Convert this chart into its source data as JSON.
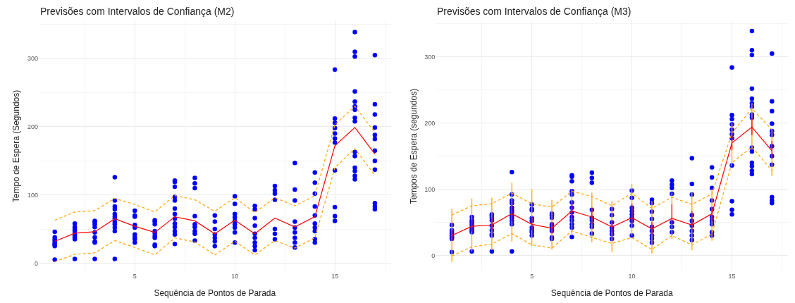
{
  "chart_data": [
    {
      "type": "scatter",
      "title": "Previsões com Intervalos de Confiança (M2)",
      "xlabel": "Sequência de Pontos de Parada",
      "ylabel": "Tempo de Espera (Segundos)",
      "xlim": [
        0.2,
        17.8
      ],
      "xticks": [
        5,
        10,
        15
      ],
      "ylim": [
        -12,
        355
      ],
      "yticks": [
        0,
        100,
        200,
        300
      ],
      "grid": true,
      "series": [
        {
          "color": "#0000ff",
          "marker": "circle",
          "x": [
            1,
            1,
            1,
            1,
            1,
            1,
            1,
            1,
            1,
            2,
            2,
            2,
            2,
            2,
            2,
            2,
            2,
            2,
            3,
            3,
            3,
            3,
            3,
            3,
            3,
            3,
            3,
            4,
            4,
            4,
            4,
            4,
            4,
            4,
            4,
            4,
            4,
            4,
            4,
            5,
            5,
            5,
            5,
            5,
            5,
            5,
            5,
            5,
            6,
            6,
            6,
            6,
            6,
            6,
            6,
            6,
            6,
            7,
            7,
            7,
            7,
            7,
            7,
            7,
            7,
            7,
            7,
            7,
            7,
            7,
            8,
            8,
            8,
            8,
            8,
            8,
            8,
            8,
            8,
            9,
            9,
            9,
            9,
            9,
            9,
            9,
            10,
            10,
            10,
            10,
            10,
            10,
            10,
            10,
            10,
            11,
            11,
            11,
            11,
            11,
            11,
            11,
            11,
            11,
            12,
            12,
            12,
            12,
            12,
            12,
            12,
            13,
            13,
            13,
            13,
            13,
            13,
            13,
            13,
            13,
            14,
            14,
            14,
            14,
            14,
            14,
            14,
            14,
            14,
            14,
            15,
            15,
            15,
            15,
            15,
            15,
            15,
            15,
            15,
            15,
            15,
            16,
            16,
            16,
            16,
            16,
            16,
            16,
            16,
            16,
            16,
            16,
            16,
            16,
            16,
            16,
            17,
            17,
            17,
            17,
            17,
            17,
            17,
            17,
            17,
            17,
            17,
            17
          ],
          "values": [
            46,
            38,
            35,
            33,
            30,
            28,
            27,
            25,
            5,
            58,
            53,
            50,
            47,
            43,
            40,
            37,
            35,
            6,
            62,
            60,
            57,
            53,
            45,
            38,
            32,
            30,
            6,
            126,
            92,
            83,
            79,
            72,
            68,
            65,
            60,
            57,
            52,
            47,
            6,
            77,
            70,
            68,
            56,
            52,
            42,
            38,
            35,
            30,
            63,
            61,
            57,
            47,
            44,
            40,
            37,
            27,
            25,
            121,
            119,
            112,
            97,
            92,
            80,
            72,
            65,
            58,
            53,
            47,
            42,
            28,
            125,
            117,
            110,
            69,
            57,
            53,
            47,
            43,
            33,
            70,
            61,
            50,
            42,
            37,
            32,
            25,
            98,
            87,
            72,
            67,
            62,
            57,
            52,
            45,
            30,
            84,
            79,
            66,
            55,
            43,
            37,
            30,
            25,
            19,
            113,
            107,
            102,
            93,
            50,
            43,
            35,
            147,
            108,
            92,
            61,
            52,
            45,
            37,
            30,
            23,
            133,
            118,
            102,
            83,
            70,
            58,
            52,
            47,
            35,
            30,
            284,
            212,
            206,
            198,
            190,
            183,
            177,
            136,
            82,
            69,
            62,
            339,
            310,
            303,
            252,
            237,
            230,
            225,
            213,
            208,
            163,
            157,
            140,
            135,
            128,
            123,
            305,
            233,
            218,
            199,
            188,
            182,
            165,
            150,
            137,
            88,
            83,
            79
          ]
        },
        {
          "type": "line",
          "color": "#ff0000",
          "line_style": "solid",
          "marker": "none",
          "x": [
            1,
            2,
            3,
            4,
            5,
            6,
            7,
            8,
            9,
            10,
            11,
            12,
            13,
            14,
            15,
            16,
            17
          ],
          "values": [
            32,
            44,
            46,
            65,
            54,
            45,
            68,
            62,
            43,
            63,
            43,
            66,
            53,
            68,
            172,
            199,
            160
          ]
        },
        {
          "type": "line",
          "color": "#ffa500",
          "line_style": "dashed",
          "marker": "none",
          "x": [
            1,
            2,
            3,
            4,
            5,
            6,
            7,
            8,
            9,
            10,
            11,
            12,
            13,
            14,
            15,
            16,
            17
          ],
          "values": [
            63,
            75,
            77,
            95,
            86,
            75,
            99,
            93,
            76,
            96,
            74,
            96,
            84,
            99,
            203,
            230,
            192
          ]
        },
        {
          "type": "line",
          "color": "#ffa500",
          "line_style": "dashed",
          "marker": "none",
          "x": [
            1,
            2,
            3,
            4,
            5,
            6,
            7,
            8,
            9,
            10,
            11,
            12,
            13,
            14,
            15,
            16,
            17
          ],
          "values": [
            2,
            13,
            15,
            33,
            23,
            12,
            37,
            31,
            12,
            32,
            12,
            33,
            22,
            37,
            140,
            168,
            129
          ]
        }
      ]
    },
    {
      "type": "scatter",
      "title": "Previsões com Intervalos de Confiança (M3)",
      "xlabel": "Sequência de Pontos de Parada",
      "ylabel": "Tempos de Espera (segundos)",
      "xlim": [
        0.2,
        17.8
      ],
      "xticks": [
        5,
        10,
        15
      ],
      "ylim": [
        -24,
        354
      ],
      "yticks": [
        0,
        100,
        200,
        300
      ],
      "grid": true,
      "series": [
        {
          "color": "#0000ff",
          "marker": "circle",
          "x": [
            1,
            1,
            1,
            1,
            1,
            1,
            1,
            1,
            1,
            2,
            2,
            2,
            2,
            2,
            2,
            2,
            2,
            2,
            3,
            3,
            3,
            3,
            3,
            3,
            3,
            3,
            3,
            4,
            4,
            4,
            4,
            4,
            4,
            4,
            4,
            4,
            4,
            4,
            4,
            5,
            5,
            5,
            5,
            5,
            5,
            5,
            5,
            5,
            6,
            6,
            6,
            6,
            6,
            6,
            6,
            6,
            6,
            7,
            7,
            7,
            7,
            7,
            7,
            7,
            7,
            7,
            7,
            7,
            7,
            7,
            8,
            8,
            8,
            8,
            8,
            8,
            8,
            8,
            8,
            9,
            9,
            9,
            9,
            9,
            9,
            9,
            10,
            10,
            10,
            10,
            10,
            10,
            10,
            10,
            10,
            11,
            11,
            11,
            11,
            11,
            11,
            11,
            11,
            11,
            12,
            12,
            12,
            12,
            12,
            12,
            12,
            13,
            13,
            13,
            13,
            13,
            13,
            13,
            13,
            13,
            14,
            14,
            14,
            14,
            14,
            14,
            14,
            14,
            14,
            14,
            15,
            15,
            15,
            15,
            15,
            15,
            15,
            15,
            15,
            15,
            15,
            16,
            16,
            16,
            16,
            16,
            16,
            16,
            16,
            16,
            16,
            16,
            16,
            16,
            16,
            16,
            17,
            17,
            17,
            17,
            17,
            17,
            17,
            17,
            17,
            17,
            17,
            17
          ],
          "values": [
            46,
            38,
            35,
            33,
            30,
            28,
            27,
            25,
            5,
            58,
            53,
            50,
            47,
            43,
            40,
            37,
            35,
            6,
            62,
            60,
            57,
            53,
            45,
            38,
            32,
            30,
            6,
            126,
            92,
            83,
            79,
            72,
            68,
            65,
            60,
            57,
            52,
            47,
            6,
            77,
            70,
            68,
            56,
            52,
            42,
            38,
            35,
            30,
            63,
            61,
            57,
            47,
            44,
            40,
            37,
            27,
            25,
            121,
            119,
            112,
            97,
            92,
            80,
            72,
            65,
            58,
            53,
            47,
            42,
            28,
            125,
            117,
            110,
            69,
            57,
            53,
            47,
            43,
            33,
            70,
            61,
            50,
            42,
            37,
            32,
            25,
            98,
            87,
            72,
            67,
            62,
            57,
            52,
            45,
            30,
            84,
            79,
            66,
            55,
            43,
            37,
            30,
            25,
            19,
            113,
            107,
            102,
            93,
            50,
            43,
            35,
            147,
            108,
            92,
            61,
            52,
            45,
            37,
            30,
            23,
            133,
            118,
            102,
            83,
            70,
            58,
            52,
            47,
            35,
            30,
            284,
            212,
            206,
            198,
            190,
            183,
            177,
            136,
            82,
            69,
            62,
            339,
            310,
            303,
            252,
            237,
            230,
            225,
            213,
            208,
            163,
            157,
            140,
            135,
            128,
            123,
            305,
            233,
            218,
            199,
            188,
            182,
            165,
            150,
            137,
            88,
            83,
            79
          ]
        },
        {
          "type": "line",
          "color": "#ffa500",
          "line_style": "dashed",
          "marker": "none",
          "x": [
            1,
            2,
            3,
            4,
            5,
            6,
            7,
            8,
            9,
            10,
            11,
            12,
            13,
            14,
            15,
            16,
            17
          ],
          "values": [
            61,
            75,
            78,
            94,
            78,
            73,
            97,
            89,
            75,
            94,
            71,
            88,
            77,
            93,
            185,
            222,
            190
          ],
          "errors": [
            [
              -10,
              70
            ],
            [
              6,
              86
            ],
            [
              8,
              87
            ],
            [
              21,
              110
            ],
            [
              14,
              100
            ],
            [
              9,
              84
            ],
            [
              30,
              100
            ],
            [
              20,
              95
            ],
            [
              5,
              82
            ],
            [
              30,
              108
            ],
            [
              3,
              82
            ],
            [
              25,
              95
            ],
            [
              8,
              95
            ],
            [
              22,
              100
            ],
            [
              140,
              200
            ],
            [
              160,
              230
            ],
            [
              120,
              190
            ]
          ]
        },
        {
          "type": "line",
          "color": "#ffa500",
          "line_style": "dashed",
          "marker": "none",
          "x": [
            1,
            2,
            3,
            4,
            5,
            6,
            7,
            8,
            9,
            10,
            11,
            12,
            13,
            14,
            15,
            16,
            17
          ],
          "values": [
            -1,
            13,
            17,
            33,
            16,
            11,
            37,
            27,
            18,
            27,
            9,
            30,
            16,
            32,
            140,
            164,
            128
          ]
        },
        {
          "type": "line",
          "color": "#ff0000",
          "line_style": "solid",
          "marker": "none",
          "x": [
            1,
            2,
            3,
            4,
            5,
            6,
            7,
            8,
            9,
            10,
            11,
            12,
            13,
            14,
            15,
            16,
            17
          ],
          "values": [
            30,
            44,
            46,
            63,
            47,
            41,
            67,
            58,
            43,
            57,
            40,
            56,
            46,
            63,
            170,
            194,
            158
          ],
          "errors": [
            [
              23,
              37
            ],
            [
              36,
              54
            ],
            [
              38,
              56
            ],
            [
              52,
              76
            ],
            [
              38,
              58
            ],
            [
              33,
              50
            ],
            [
              56,
              78
            ],
            [
              48,
              72
            ],
            [
              35,
              52
            ],
            [
              48,
              78
            ],
            [
              32,
              50
            ],
            [
              47,
              77
            ],
            [
              39,
              67
            ],
            [
              52,
              73
            ],
            [
              159,
              181
            ],
            [
              182,
              208
            ],
            [
              146,
              173
            ]
          ]
        }
      ]
    }
  ]
}
